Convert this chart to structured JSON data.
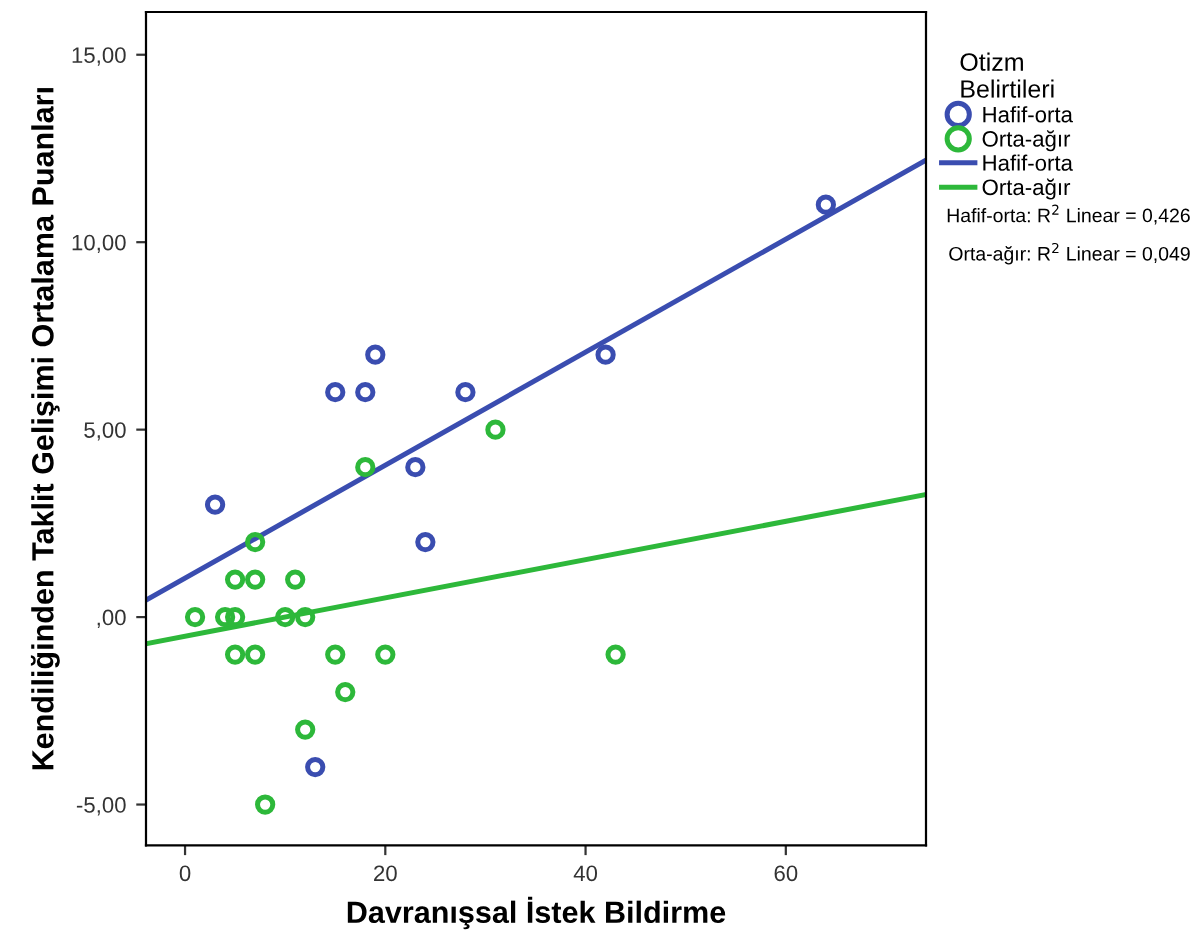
{
  "chart_data": {
    "type": "scatter",
    "xlabel": "Davranışsal İstek Bildirme",
    "ylabel": "Kendiliğinden Taklit Gelişimi Ortalama Puanları",
    "legend_title": "Otizm\nBelirtileri",
    "xlim": [
      -3.9,
      74
    ],
    "ylim": [
      -6.09,
      16.14
    ],
    "xticks": [
      0,
      20,
      40,
      60
    ],
    "yticks": [
      {
        "value": -5,
        "label": "-5,00"
      },
      {
        "value": 0,
        "label": ",00"
      },
      {
        "value": 5,
        "label": "5,00"
      },
      {
        "value": 10,
        "label": "10,00"
      },
      {
        "value": 15,
        "label": "15,00"
      }
    ],
    "marker": "circle",
    "legend": "top right",
    "grid": false,
    "series": [
      {
        "name": "Hafif-orta",
        "color": "#3a4db0",
        "x": [
          3,
          15,
          18,
          19,
          28,
          23,
          24,
          13,
          42,
          64
        ],
        "values": [
          3,
          6,
          6,
          7,
          6,
          4,
          2,
          -4,
          7,
          11
        ]
      },
      {
        "name": "Orta-ağır",
        "color": "#2db83a",
        "x": [
          1,
          4,
          5,
          7,
          5,
          7,
          11,
          10,
          12,
          5,
          7,
          15,
          20,
          16,
          12,
          8,
          18,
          31,
          43
        ],
        "values": [
          0,
          0,
          0,
          2,
          1,
          1,
          1,
          0,
          0,
          -1,
          -1,
          -1,
          -1,
          -2,
          -3,
          -5,
          4,
          5,
          -1
        ]
      },
      {
        "name": "Hafif-orta",
        "type": "line",
        "marker": "none",
        "color": "#3a4db0",
        "x": [
          -3.9,
          74
        ],
        "values": [
          0.45,
          12.19
        ]
      },
      {
        "name": "Orta-ağır",
        "type": "line",
        "marker": "none",
        "color": "#2db83a",
        "x": [
          -3.9,
          74
        ],
        "values": [
          -0.71,
          3.27
        ]
      }
    ],
    "annotations": [
      "Hafif-orta: R$^{2}$ Linear = 0,426",
      "Orta-ağır: R$^{2}$ Linear = 0,049"
    ]
  }
}
